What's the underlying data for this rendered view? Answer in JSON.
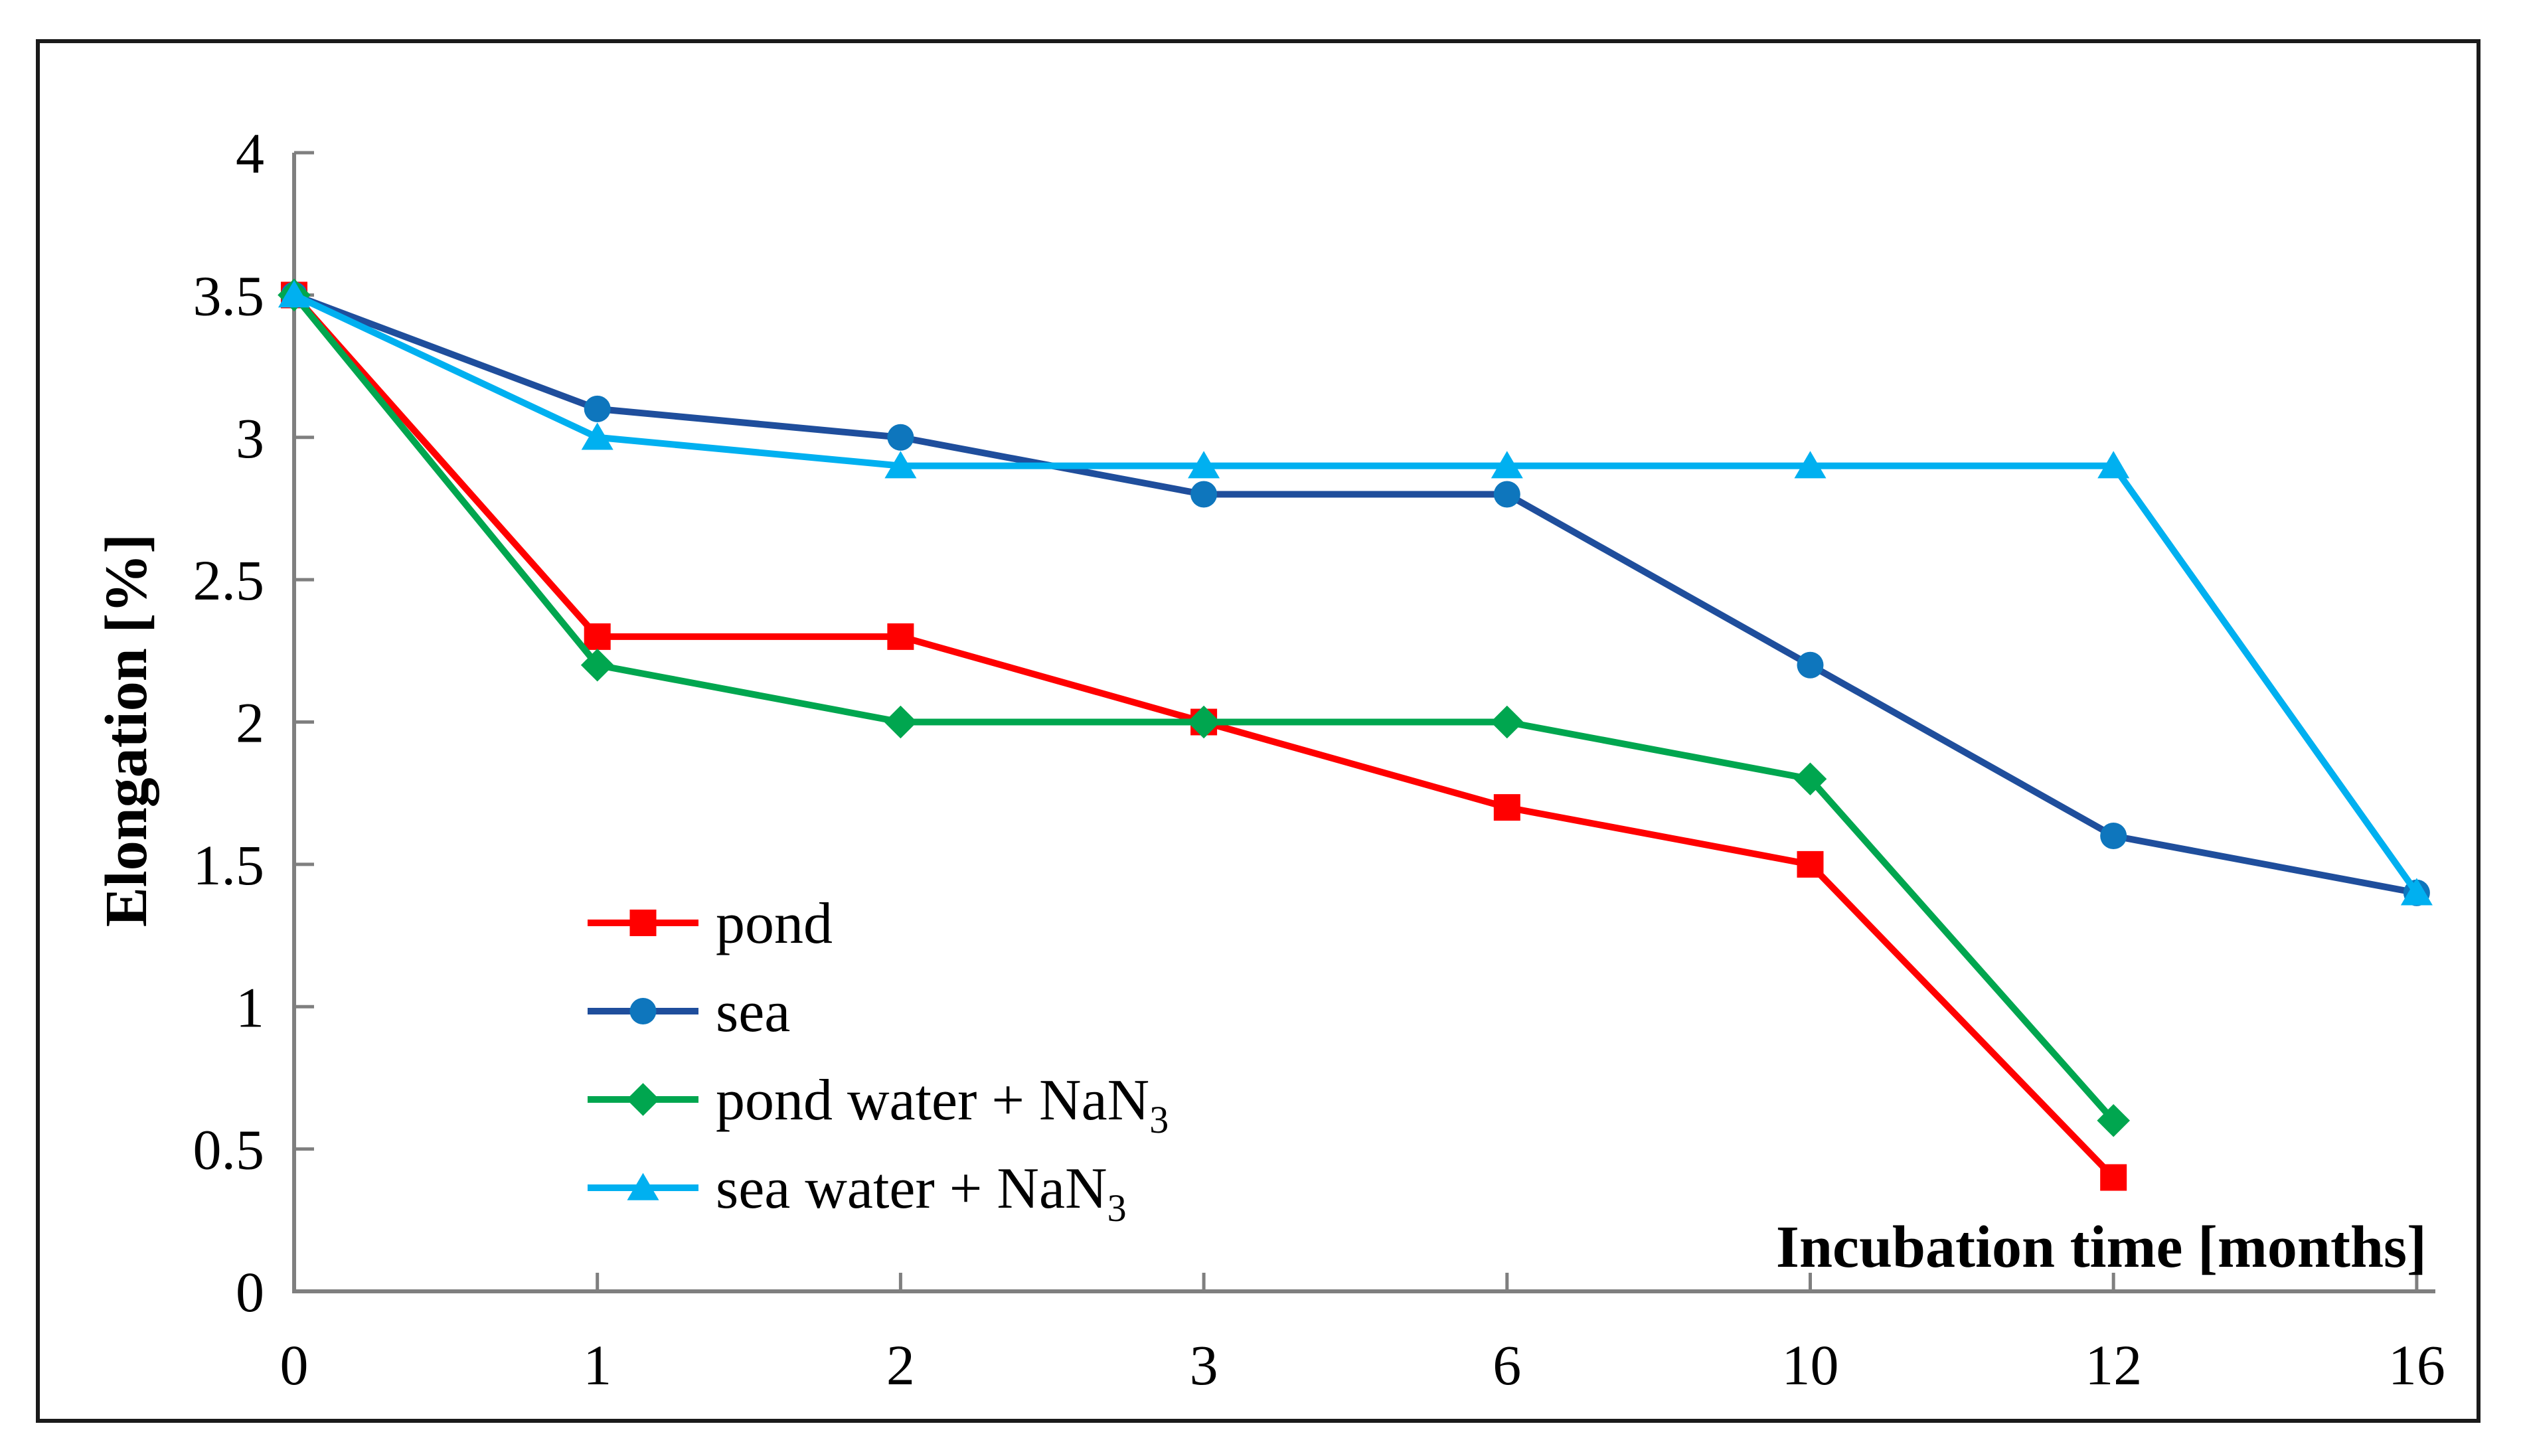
{
  "chart_data": {
    "type": "line",
    "title": "",
    "xlabel": "Incubation time [months]",
    "ylabel": "Elongation [%]",
    "categories": [
      0,
      1,
      2,
      3,
      6,
      10,
      12,
      16
    ],
    "x_tick_labels": [
      "0",
      "1",
      "2",
      "3",
      "6",
      "10",
      "12",
      "16"
    ],
    "y_ticks": [
      0,
      0.5,
      1,
      1.5,
      2,
      2.5,
      3,
      3.5,
      4
    ],
    "y_tick_labels": [
      "0",
      "0.5",
      "1",
      "1.5",
      "2",
      "2.5",
      "3",
      "3.5",
      "4"
    ],
    "ylim": [
      0,
      4
    ],
    "grid": false,
    "legend_position": "inside-lower-left",
    "axis_color": "#7F7F7F",
    "frame_color": "#1A1A1A",
    "series": [
      {
        "name": "pond",
        "label": "pond",
        "label_sub": "",
        "marker": "square",
        "line_color": "#FF0000",
        "marker_color": "#FF0000",
        "values": [
          3.5,
          2.3,
          2.3,
          2.0,
          1.7,
          1.5,
          0.4,
          null
        ]
      },
      {
        "name": "sea",
        "label": "sea",
        "label_sub": "",
        "marker": "circle",
        "line_color": "#1F4E9C",
        "marker_color": "#0E76BD",
        "values": [
          3.5,
          3.1,
          3.0,
          2.8,
          2.8,
          2.2,
          1.6,
          1.4
        ]
      },
      {
        "name": "pond water + NaN3",
        "label": "pond water + NaN",
        "label_sub": "3",
        "marker": "diamond",
        "line_color": "#00A64F",
        "marker_color": "#00A64F",
        "values": [
          3.5,
          2.2,
          2.0,
          2.0,
          2.0,
          1.8,
          0.6,
          null
        ]
      },
      {
        "name": "sea water + NaN3",
        "label": "sea water + NaN",
        "label_sub": "3",
        "marker": "triangle",
        "line_color": "#00B0F0",
        "marker_color": "#00B0F0",
        "values": [
          3.5,
          3.0,
          2.9,
          2.9,
          2.9,
          2.9,
          2.9,
          1.4
        ]
      }
    ]
  }
}
